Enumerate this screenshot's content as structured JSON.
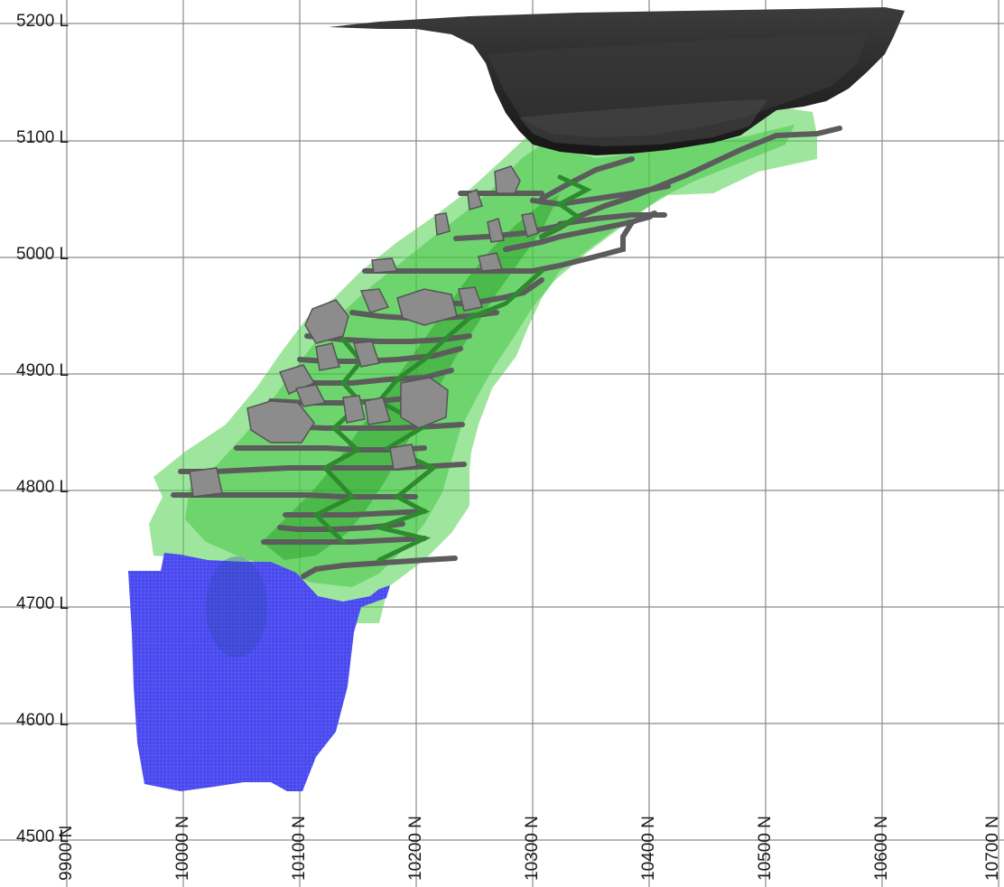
{
  "elevation_labels": [
    "5200 L",
    "5100 L",
    "5000 L",
    "4900 L",
    "4800 L",
    "4700 L",
    "4600 L",
    "4500 L"
  ],
  "northing_labels": [
    "9900 N",
    "10000 N",
    "10100 N",
    "10200 N",
    "10300 N",
    "10400 N",
    "10500 N",
    "10600 N",
    "10700 N"
  ],
  "colors": {
    "grid": "#8a8a8a",
    "pit": "#2e2e2e",
    "pit_highlight": "#5a5a5a",
    "ore_envelope": "#4fd24f",
    "ore_envelope_dark": "#1f9b1f",
    "workings": "#5c5c5c",
    "stopes": "#8c8c8c",
    "blue_block": "#3f3ff0"
  }
}
